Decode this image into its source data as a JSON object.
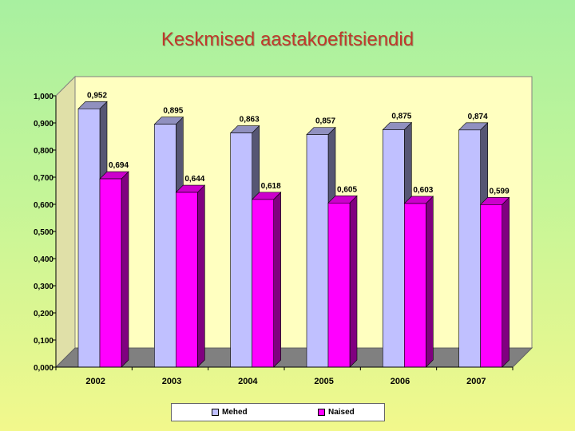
{
  "title": "Keskmised aastakoefitsiendid",
  "chart_data": {
    "type": "bar",
    "categories": [
      "2002",
      "2003",
      "2004",
      "2005",
      "2006",
      "2007"
    ],
    "series": [
      {
        "name": "Mehed",
        "values": [
          0.952,
          0.895,
          0.863,
          0.857,
          0.875,
          0.874
        ],
        "labels": [
          "0,952",
          "0,895",
          "0,863",
          "0,857",
          "0,875",
          "0,874"
        ],
        "color": "#c0c0ff"
      },
      {
        "name": "Naised",
        "values": [
          0.694,
          0.644,
          0.618,
          0.605,
          0.603,
          0.599
        ],
        "labels": [
          "0,694",
          "0,644",
          "0,618",
          "0,605",
          "0,603",
          "0,599"
        ],
        "color": "#ff00ff"
      }
    ],
    "yticks": [
      "0,000",
      "0,100",
      "0,200",
      "0,300",
      "0,400",
      "0,500",
      "0,600",
      "0,700",
      "0,800",
      "0,900",
      "1,000"
    ],
    "ylim": [
      0,
      1
    ],
    "legend": "bottom",
    "plot_background": "#ffffc0",
    "floor_color": "#808080"
  }
}
